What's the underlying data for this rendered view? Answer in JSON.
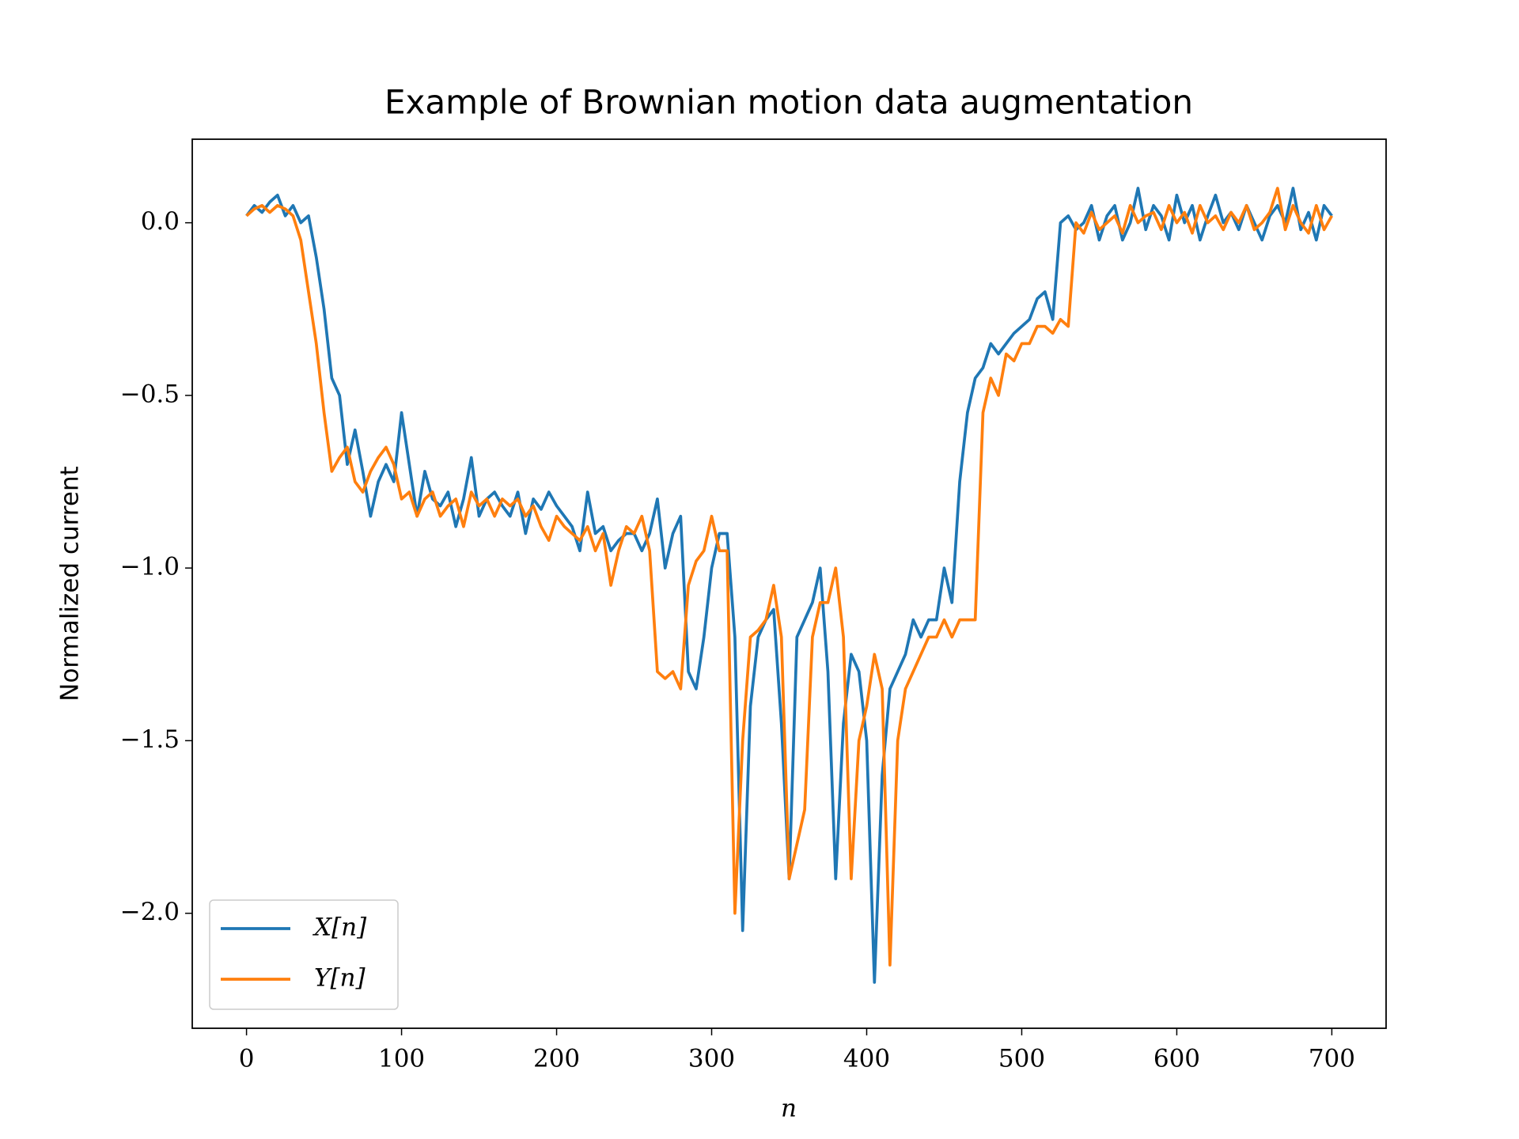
{
  "chart_data": {
    "type": "line",
    "title": "Example of Brownian motion data augmentation",
    "xlabel": "n",
    "ylabel": "Normalized current",
    "xlim": [
      -35,
      735
    ],
    "ylim": [
      -2.333,
      0.242
    ],
    "xticks": [
      0,
      100,
      200,
      300,
      400,
      500,
      600,
      700
    ],
    "yticks": [
      {
        "value": -2,
        "label": "−2.0"
      },
      {
        "value": -1.5,
        "label": "−1.5"
      },
      {
        "value": -1,
        "label": "−1.0"
      },
      {
        "value": -0.5,
        "label": "−0.5"
      },
      {
        "value": 0,
        "label": "0.0"
      }
    ],
    "grid": false,
    "legend": "lower left",
    "x": [
      0,
      5,
      10,
      15,
      20,
      25,
      30,
      35,
      40,
      45,
      50,
      55,
      60,
      65,
      70,
      75,
      80,
      85,
      90,
      95,
      100,
      105,
      110,
      115,
      120,
      125,
      130,
      135,
      140,
      145,
      150,
      155,
      160,
      165,
      170,
      175,
      180,
      185,
      190,
      195,
      200,
      205,
      210,
      215,
      220,
      225,
      230,
      235,
      240,
      245,
      250,
      255,
      260,
      265,
      270,
      275,
      280,
      285,
      290,
      295,
      300,
      305,
      310,
      315,
      320,
      325,
      330,
      335,
      340,
      345,
      350,
      355,
      360,
      365,
      370,
      375,
      380,
      385,
      390,
      395,
      400,
      405,
      410,
      415,
      420,
      425,
      430,
      435,
      440,
      445,
      450,
      455,
      460,
      465,
      470,
      475,
      480,
      485,
      490,
      495,
      500,
      505,
      510,
      515,
      520,
      525,
      530,
      535,
      540,
      545,
      550,
      555,
      560,
      565,
      570,
      575,
      580,
      585,
      590,
      595,
      600,
      605,
      610,
      615,
      620,
      625,
      630,
      635,
      640,
      645,
      650,
      655,
      660,
      665,
      670,
      675,
      680,
      685,
      690,
      695,
      700
    ],
    "series": [
      {
        "name": "X[n]",
        "color": "#1f77b4",
        "values": [
          0.02,
          0.05,
          0.03,
          0.06,
          0.08,
          0.02,
          0.05,
          0.0,
          0.02,
          -0.1,
          -0.25,
          -0.45,
          -0.5,
          -0.7,
          -0.6,
          -0.72,
          -0.85,
          -0.75,
          -0.7,
          -0.75,
          -0.55,
          -0.7,
          -0.85,
          -0.72,
          -0.8,
          -0.82,
          -0.78,
          -0.88,
          -0.8,
          -0.68,
          -0.85,
          -0.8,
          -0.78,
          -0.82,
          -0.85,
          -0.78,
          -0.9,
          -0.8,
          -0.83,
          -0.78,
          -0.82,
          -0.85,
          -0.88,
          -0.95,
          -0.78,
          -0.9,
          -0.88,
          -0.95,
          -0.92,
          -0.9,
          -0.9,
          -0.95,
          -0.9,
          -0.8,
          -1.0,
          -0.9,
          -0.85,
          -1.3,
          -1.35,
          -1.2,
          -1.0,
          -0.9,
          -0.9,
          -1.2,
          -2.05,
          -1.4,
          -1.2,
          -1.15,
          -1.12,
          -1.45,
          -1.9,
          -1.2,
          -1.15,
          -1.1,
          -1.0,
          -1.3,
          -1.9,
          -1.45,
          -1.25,
          -1.3,
          -1.5,
          -2.2,
          -1.6,
          -1.35,
          -1.3,
          -1.25,
          -1.15,
          -1.2,
          -1.15,
          -1.15,
          -1.0,
          -1.1,
          -0.75,
          -0.55,
          -0.45,
          -0.42,
          -0.35,
          -0.38,
          -0.35,
          -0.32,
          -0.3,
          -0.28,
          -0.22,
          -0.2,
          -0.28,
          0.0,
          0.02,
          -0.02,
          0.0,
          0.05,
          -0.05,
          0.02,
          0.05,
          -0.05,
          0.0,
          0.1,
          -0.02,
          0.05,
          0.02,
          -0.05,
          0.08,
          0.0,
          0.05,
          -0.05,
          0.02,
          0.08,
          0.0,
          0.03,
          -0.02,
          0.05,
          0.0,
          -0.05,
          0.02,
          0.05,
          0.0,
          0.1,
          -0.02,
          0.03,
          -0.05,
          0.05,
          0.02
        ]
      },
      {
        "name": "Y[n]",
        "color": "#ff7f0e",
        "values": [
          0.02,
          0.04,
          0.05,
          0.03,
          0.05,
          0.04,
          0.02,
          -0.05,
          -0.2,
          -0.35,
          -0.55,
          -0.72,
          -0.68,
          -0.65,
          -0.75,
          -0.78,
          -0.72,
          -0.68,
          -0.65,
          -0.7,
          -0.8,
          -0.78,
          -0.85,
          -0.8,
          -0.78,
          -0.85,
          -0.82,
          -0.8,
          -0.88,
          -0.78,
          -0.82,
          -0.8,
          -0.85,
          -0.8,
          -0.82,
          -0.8,
          -0.85,
          -0.82,
          -0.88,
          -0.92,
          -0.85,
          -0.88,
          -0.9,
          -0.92,
          -0.88,
          -0.95,
          -0.9,
          -1.05,
          -0.95,
          -0.88,
          -0.9,
          -0.85,
          -0.95,
          -1.3,
          -1.32,
          -1.3,
          -1.35,
          -1.05,
          -0.98,
          -0.95,
          -0.85,
          -0.95,
          -0.95,
          -2.0,
          -1.5,
          -1.2,
          -1.18,
          -1.15,
          -1.05,
          -1.2,
          -1.9,
          -1.8,
          -1.7,
          -1.2,
          -1.1,
          -1.1,
          -1.0,
          -1.2,
          -1.9,
          -1.5,
          -1.4,
          -1.25,
          -1.35,
          -2.15,
          -1.5,
          -1.35,
          -1.3,
          -1.25,
          -1.2,
          -1.2,
          -1.15,
          -1.2,
          -1.15,
          -1.15,
          -1.15,
          -0.55,
          -0.45,
          -0.5,
          -0.38,
          -0.4,
          -0.35,
          -0.35,
          -0.3,
          -0.3,
          -0.32,
          -0.28,
          -0.3,
          0.0,
          -0.03,
          0.03,
          -0.02,
          0.0,
          0.02,
          -0.03,
          0.05,
          0.0,
          0.02,
          0.03,
          -0.02,
          0.05,
          0.0,
          0.03,
          -0.03,
          0.05,
          0.0,
          0.02,
          -0.02,
          0.03,
          0.0,
          0.05,
          -0.02,
          0.0,
          0.03,
          0.1,
          -0.02,
          0.05,
          0.0,
          -0.03,
          0.05,
          -0.02,
          0.02
        ]
      }
    ]
  }
}
